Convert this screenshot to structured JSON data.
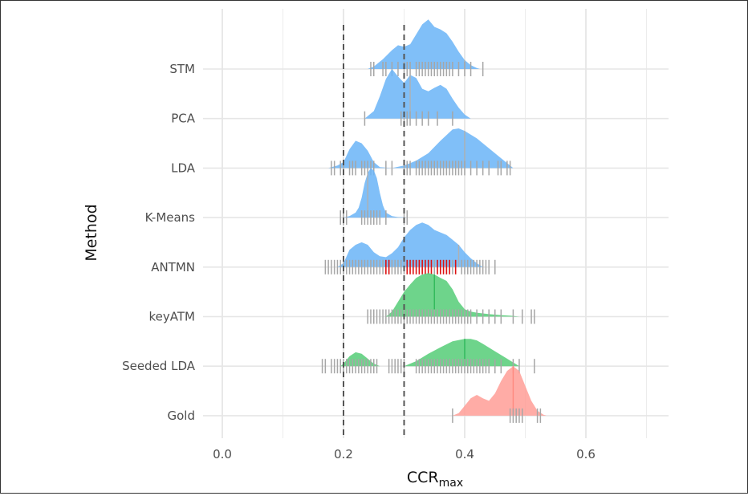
{
  "chart_data": {
    "type": "ridgeline",
    "xlabel": "CCR",
    "xlabel_subscript": "max",
    "ylabel": "Method",
    "xlim": [
      -0.03,
      0.73
    ],
    "x_ticks": [
      {
        "value": 0.0,
        "label": "0.0"
      },
      {
        "value": 0.2,
        "label": "0.2"
      },
      {
        "value": 0.4,
        "label": "0.4"
      },
      {
        "value": 0.6,
        "label": "0.6"
      }
    ],
    "reference_lines": [
      0.2,
      0.3
    ],
    "grid": true,
    "colors": {
      "baseline": "#6ab4f7",
      "keyword": "#55cc77",
      "gold": "#ff9e96",
      "rug": "#a6a6a6",
      "rug_highlight": "#dd1111",
      "median": "#b0b0b0"
    },
    "series": [
      {
        "name": "STM",
        "color_key": "baseline",
        "median": 0.4,
        "scale": 0.95,
        "density": [
          [
            0.24,
            0
          ],
          [
            0.25,
            0.05
          ],
          [
            0.265,
            0.2
          ],
          [
            0.28,
            0.38
          ],
          [
            0.29,
            0.48
          ],
          [
            0.3,
            0.45
          ],
          [
            0.31,
            0.5
          ],
          [
            0.32,
            0.7
          ],
          [
            0.33,
            0.9
          ],
          [
            0.34,
            1.0
          ],
          [
            0.35,
            0.85
          ],
          [
            0.36,
            0.8
          ],
          [
            0.37,
            0.72
          ],
          [
            0.38,
            0.55
          ],
          [
            0.39,
            0.35
          ],
          [
            0.4,
            0.18
          ],
          [
            0.41,
            0.08
          ],
          [
            0.42,
            0.02
          ],
          [
            0.425,
            0
          ]
        ],
        "rug": [
          0.245,
          0.25,
          0.265,
          0.27,
          0.28,
          0.29,
          0.3,
          0.305,
          0.31,
          0.32,
          0.325,
          0.33,
          0.335,
          0.34,
          0.345,
          0.35,
          0.355,
          0.36,
          0.365,
          0.37,
          0.375,
          0.38,
          0.39,
          0.4,
          0.41,
          0.43
        ]
      },
      {
        "name": "PCA",
        "color_key": "baseline",
        "median": 0.31,
        "scale": 0.95,
        "density": [
          [
            0.235,
            0
          ],
          [
            0.25,
            0.15
          ],
          [
            0.26,
            0.45
          ],
          [
            0.27,
            0.8
          ],
          [
            0.28,
            1.0
          ],
          [
            0.29,
            0.85
          ],
          [
            0.3,
            0.72
          ],
          [
            0.31,
            0.88
          ],
          [
            0.32,
            0.82
          ],
          [
            0.33,
            0.6
          ],
          [
            0.34,
            0.55
          ],
          [
            0.35,
            0.62
          ],
          [
            0.36,
            0.68
          ],
          [
            0.37,
            0.6
          ],
          [
            0.38,
            0.4
          ],
          [
            0.39,
            0.22
          ],
          [
            0.4,
            0.08
          ],
          [
            0.41,
            0
          ]
        ],
        "rug": [
          0.235,
          0.295,
          0.3,
          0.305,
          0.31,
          0.32,
          0.33,
          0.34,
          0.355,
          0.38
        ]
      },
      {
        "name": "LDA",
        "color_key": "baseline",
        "median": 0.4,
        "scale": 0.95,
        "density": [
          [
            0.175,
            0
          ],
          [
            0.19,
            0.05
          ],
          [
            0.2,
            0.12
          ],
          [
            0.21,
            0.38
          ],
          [
            0.22,
            0.55
          ],
          [
            0.23,
            0.5
          ],
          [
            0.24,
            0.35
          ],
          [
            0.25,
            0.12
          ],
          [
            0.26,
            0.02
          ],
          [
            0.28,
            0
          ],
          [
            0.3,
            0.05
          ],
          [
            0.32,
            0.15
          ],
          [
            0.34,
            0.3
          ],
          [
            0.36,
            0.55
          ],
          [
            0.38,
            0.78
          ],
          [
            0.39,
            0.8
          ],
          [
            0.4,
            0.75
          ],
          [
            0.42,
            0.6
          ],
          [
            0.44,
            0.4
          ],
          [
            0.46,
            0.2
          ],
          [
            0.475,
            0.05
          ],
          [
            0.48,
            0
          ]
        ],
        "rug": [
          0.18,
          0.185,
          0.195,
          0.2,
          0.21,
          0.215,
          0.22,
          0.23,
          0.235,
          0.24,
          0.245,
          0.25,
          0.27,
          0.28,
          0.3,
          0.305,
          0.31,
          0.32,
          0.325,
          0.33,
          0.335,
          0.34,
          0.345,
          0.35,
          0.355,
          0.36,
          0.365,
          0.37,
          0.375,
          0.38,
          0.385,
          0.39,
          0.395,
          0.4,
          0.41,
          0.42,
          0.43,
          0.44,
          0.455,
          0.46,
          0.47,
          0.475
        ]
      },
      {
        "name": "K-Means",
        "color_key": "baseline",
        "median": 0.24,
        "scale": 0.95,
        "density": [
          [
            0.2,
            0
          ],
          [
            0.21,
            0.03
          ],
          [
            0.22,
            0.1
          ],
          [
            0.225,
            0.2
          ],
          [
            0.23,
            0.4
          ],
          [
            0.235,
            0.7
          ],
          [
            0.24,
            0.9
          ],
          [
            0.245,
            1.0
          ],
          [
            0.25,
            0.95
          ],
          [
            0.255,
            0.8
          ],
          [
            0.26,
            0.5
          ],
          [
            0.265,
            0.25
          ],
          [
            0.27,
            0.1
          ],
          [
            0.28,
            0.03
          ],
          [
            0.29,
            0.01
          ],
          [
            0.3,
            0.005
          ],
          [
            0.305,
            0
          ]
        ],
        "rug": [
          0.195,
          0.2,
          0.205,
          0.23,
          0.235,
          0.24,
          0.245,
          0.25,
          0.255,
          0.26,
          0.27,
          0.3,
          0.305
        ]
      },
      {
        "name": "ANTMN",
        "color_key": "baseline",
        "median": 0.39,
        "scale": 0.95,
        "density": [
          [
            0.19,
            0
          ],
          [
            0.2,
            0.08
          ],
          [
            0.21,
            0.35
          ],
          [
            0.22,
            0.45
          ],
          [
            0.23,
            0.5
          ],
          [
            0.24,
            0.45
          ],
          [
            0.25,
            0.3
          ],
          [
            0.26,
            0.22
          ],
          [
            0.27,
            0.2
          ],
          [
            0.28,
            0.28
          ],
          [
            0.29,
            0.4
          ],
          [
            0.3,
            0.6
          ],
          [
            0.31,
            0.75
          ],
          [
            0.32,
            0.85
          ],
          [
            0.33,
            0.9
          ],
          [
            0.34,
            0.85
          ],
          [
            0.35,
            0.75
          ],
          [
            0.36,
            0.7
          ],
          [
            0.37,
            0.65
          ],
          [
            0.38,
            0.55
          ],
          [
            0.39,
            0.45
          ],
          [
            0.4,
            0.3
          ],
          [
            0.41,
            0.18
          ],
          [
            0.42,
            0.08
          ],
          [
            0.43,
            0
          ]
        ],
        "rug": [
          0.17,
          0.175,
          0.18,
          0.185,
          0.19,
          0.195,
          0.2,
          0.205,
          0.21,
          0.215,
          0.22,
          0.225,
          0.23,
          0.235,
          0.24,
          0.245,
          0.25,
          0.255,
          0.26,
          0.265,
          0.275,
          0.28,
          0.285,
          0.29,
          0.295,
          0.3,
          0.34,
          0.35,
          0.37,
          0.38,
          0.395,
          0.4,
          0.405,
          0.41,
          0.415,
          0.42,
          0.425,
          0.43,
          0.435,
          0.44,
          0.45
        ],
        "rug_highlight": [
          0.27,
          0.275,
          0.305,
          0.31,
          0.315,
          0.32,
          0.325,
          0.33,
          0.335,
          0.34,
          0.345,
          0.355,
          0.36,
          0.365,
          0.37,
          0.375,
          0.385
        ]
      },
      {
        "name": "keyATM",
        "color_key": "keyword",
        "median": 0.35,
        "scale": 0.95,
        "density": [
          [
            0.27,
            0
          ],
          [
            0.28,
            0.1
          ],
          [
            0.29,
            0.3
          ],
          [
            0.3,
            0.5
          ],
          [
            0.31,
            0.65
          ],
          [
            0.32,
            0.78
          ],
          [
            0.33,
            0.85
          ],
          [
            0.34,
            0.88
          ],
          [
            0.35,
            0.85
          ],
          [
            0.36,
            0.78
          ],
          [
            0.37,
            0.72
          ],
          [
            0.38,
            0.55
          ],
          [
            0.39,
            0.3
          ],
          [
            0.4,
            0.15
          ],
          [
            0.41,
            0.1
          ],
          [
            0.42,
            0.08
          ],
          [
            0.44,
            0.05
          ],
          [
            0.46,
            0.03
          ],
          [
            0.48,
            0.015
          ],
          [
            0.49,
            0
          ]
        ],
        "rug": [
          0.24,
          0.245,
          0.25,
          0.255,
          0.26,
          0.265,
          0.27,
          0.275,
          0.28,
          0.285,
          0.29,
          0.295,
          0.3,
          0.305,
          0.31,
          0.315,
          0.32,
          0.325,
          0.33,
          0.335,
          0.34,
          0.345,
          0.35,
          0.355,
          0.36,
          0.365,
          0.37,
          0.375,
          0.38,
          0.385,
          0.39,
          0.395,
          0.4,
          0.405,
          0.41,
          0.42,
          0.43,
          0.44,
          0.45,
          0.46,
          0.48,
          0.495,
          0.51,
          0.515
        ]
      },
      {
        "name": "Seeded LDA",
        "color_key": "keyword",
        "median": 0.4,
        "scale": 0.95,
        "density": [
          [
            0.195,
            0
          ],
          [
            0.2,
            0.05
          ],
          [
            0.21,
            0.2
          ],
          [
            0.22,
            0.28
          ],
          [
            0.23,
            0.25
          ],
          [
            0.24,
            0.15
          ],
          [
            0.25,
            0.05
          ],
          [
            0.26,
            0
          ],
          [
            0.3,
            0
          ],
          [
            0.32,
            0.1
          ],
          [
            0.34,
            0.25
          ],
          [
            0.36,
            0.38
          ],
          [
            0.38,
            0.5
          ],
          [
            0.4,
            0.55
          ],
          [
            0.41,
            0.55
          ],
          [
            0.42,
            0.52
          ],
          [
            0.43,
            0.45
          ],
          [
            0.45,
            0.3
          ],
          [
            0.47,
            0.15
          ],
          [
            0.49,
            0
          ]
        ],
        "rug": [
          0.165,
          0.17,
          0.18,
          0.185,
          0.19,
          0.195,
          0.2,
          0.205,
          0.21,
          0.215,
          0.22,
          0.225,
          0.23,
          0.235,
          0.24,
          0.245,
          0.25,
          0.255,
          0.275,
          0.28,
          0.285,
          0.29,
          0.295,
          0.3,
          0.32,
          0.325,
          0.33,
          0.335,
          0.34,
          0.345,
          0.35,
          0.355,
          0.36,
          0.365,
          0.37,
          0.375,
          0.38,
          0.385,
          0.39,
          0.395,
          0.4,
          0.405,
          0.41,
          0.415,
          0.42,
          0.425,
          0.43,
          0.435,
          0.44,
          0.45,
          0.46,
          0.48,
          0.49,
          0.515
        ]
      },
      {
        "name": "Gold",
        "color_key": "gold",
        "median": 0.48,
        "scale": 0.95,
        "density": [
          [
            0.38,
            0
          ],
          [
            0.39,
            0.05
          ],
          [
            0.4,
            0.2
          ],
          [
            0.41,
            0.35
          ],
          [
            0.42,
            0.42
          ],
          [
            0.43,
            0.35
          ],
          [
            0.44,
            0.3
          ],
          [
            0.45,
            0.45
          ],
          [
            0.46,
            0.7
          ],
          [
            0.47,
            0.9
          ],
          [
            0.48,
            1.0
          ],
          [
            0.49,
            0.9
          ],
          [
            0.5,
            0.6
          ],
          [
            0.51,
            0.3
          ],
          [
            0.52,
            0.1
          ],
          [
            0.53,
            0.02
          ],
          [
            0.535,
            0
          ]
        ],
        "rug": [
          0.38,
          0.475,
          0.48,
          0.485,
          0.49,
          0.495,
          0.52,
          0.525
        ]
      }
    ]
  }
}
